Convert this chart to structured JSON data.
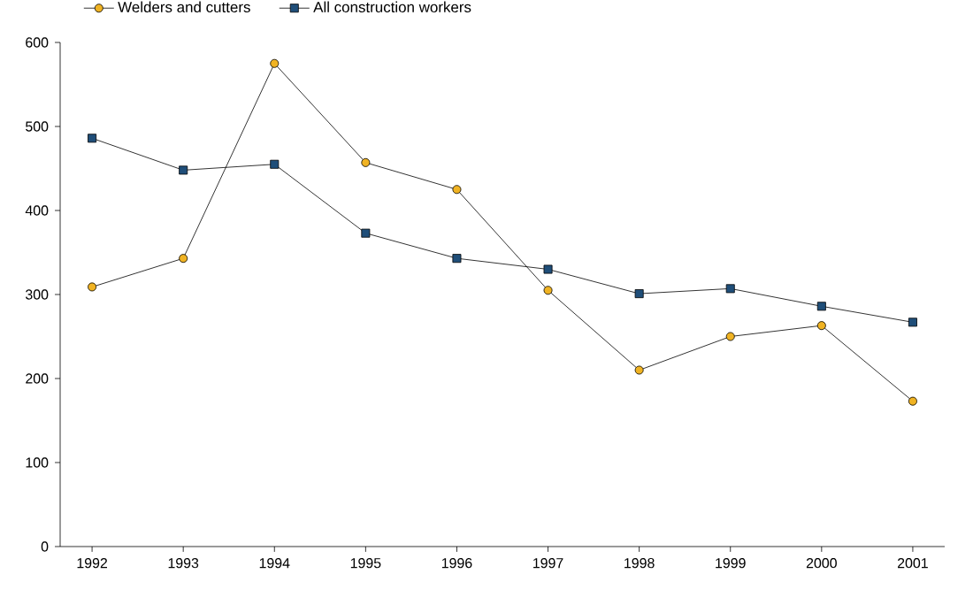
{
  "chart_data": {
    "type": "line",
    "categories": [
      "1992",
      "1993",
      "1994",
      "1995",
      "1996",
      "1997",
      "1998",
      "1999",
      "2000",
      "2001"
    ],
    "series": [
      {
        "name": "Welders and cutters",
        "color": "#f0b323",
        "marker": "circle",
        "values": [
          309,
          343,
          575,
          457,
          425,
          305,
          210,
          250,
          263,
          173
        ]
      },
      {
        "name": "All construction workers",
        "color": "#1f4e79",
        "marker": "square",
        "values": [
          486,
          448,
          455,
          373,
          343,
          330,
          301,
          307,
          286,
          267
        ]
      }
    ],
    "ylim": [
      0,
      600
    ],
    "yticks": [
      0,
      100,
      200,
      300,
      400,
      500,
      600
    ],
    "grid": false,
    "legend": "top left",
    "line_style": "solid"
  }
}
